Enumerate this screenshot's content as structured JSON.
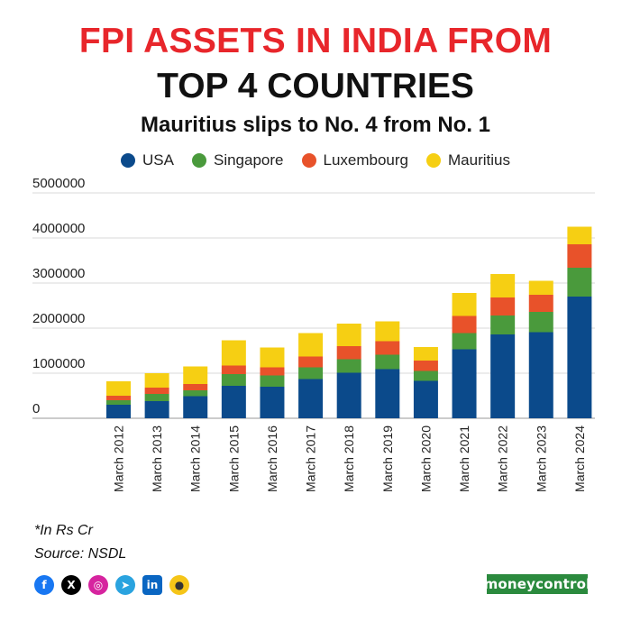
{
  "header": {
    "title_line1": "FPI ASSETS IN INDIA FROM",
    "title_line2": "TOP 4 COUNTRIES",
    "subtitle": "Mauritius slips to No. 4 from No. 1"
  },
  "chart_data": {
    "type": "bar",
    "stacked": true,
    "categories": [
      "March 2012",
      "March 2013",
      "March 2014",
      "March 2015",
      "March 2016",
      "March 2017",
      "March 2018",
      "March 2019",
      "March 2020",
      "March 2021",
      "March 2022",
      "March 2023",
      "March 2024"
    ],
    "series": [
      {
        "name": "USA",
        "color": "#0b4a8b",
        "values": [
          300000,
          380000,
          490000,
          720000,
          700000,
          870000,
          1010000,
          1090000,
          830000,
          1530000,
          1860000,
          1910000,
          2700000
        ]
      },
      {
        "name": "Singapore",
        "color": "#4a9a3c",
        "values": [
          100000,
          160000,
          130000,
          260000,
          250000,
          260000,
          300000,
          320000,
          220000,
          360000,
          420000,
          450000,
          640000
        ]
      },
      {
        "name": "Luxembourg",
        "color": "#e8522a",
        "values": [
          100000,
          140000,
          140000,
          190000,
          180000,
          240000,
          290000,
          300000,
          230000,
          380000,
          400000,
          380000,
          520000
        ]
      },
      {
        "name": "Mauritius",
        "color": "#f6cf13",
        "values": [
          320000,
          320000,
          390000,
          560000,
          440000,
          520000,
          500000,
          440000,
          300000,
          510000,
          520000,
          310000,
          390000
        ]
      }
    ],
    "y_ticks": [
      "0",
      "1000000",
      "2000000",
      "3000000",
      "4000000",
      "5000000"
    ],
    "ylim": [
      0,
      5000000
    ],
    "grid": true,
    "legend": "top-center"
  },
  "footer": {
    "note": "*In Rs Cr",
    "source": "Source: NSDL",
    "social_icons": [
      "facebook-icon",
      "x-icon",
      "instagram-icon",
      "telegram-icon",
      "linkedin-icon",
      "koo-icon"
    ],
    "brand": "moneycontrol"
  }
}
